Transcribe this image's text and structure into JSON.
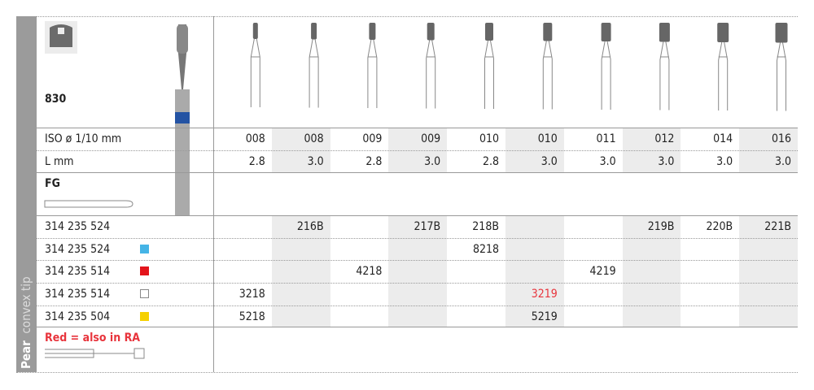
{
  "header": {
    "code": "830",
    "iso_label": "ISO ø 1/10 mm",
    "length_label": "L mm",
    "shank": "FG",
    "side_title_bold": "Pear",
    "side_title": "convex tip",
    "note": "Red = also in RA"
  },
  "columns": {
    "iso": [
      "008",
      "008",
      "009",
      "009",
      "010",
      "010",
      "011",
      "012",
      "014",
      "016"
    ],
    "length": [
      "2.8",
      "3.0",
      "2.8",
      "3.0",
      "2.8",
      "3.0",
      "3.0",
      "3.0",
      "3.0",
      "3.0"
    ]
  },
  "rows": [
    {
      "ref": "314 235 524",
      "cells": [
        null,
        "216B",
        null,
        "217B",
        "218B",
        null,
        null,
        "219B",
        "220B",
        "221B"
      ]
    },
    {
      "ref": "314 235 524",
      "swatch": "#45b4e6",
      "cells": [
        null,
        null,
        null,
        null,
        "8218",
        null,
        null,
        null,
        null,
        null
      ]
    },
    {
      "ref": "314 235 514",
      "swatch": "#e3141b",
      "cells": [
        null,
        null,
        "4218",
        null,
        null,
        null,
        "4219",
        null,
        null,
        null
      ]
    },
    {
      "ref": "314 235 514",
      "swatch": "#ffffff",
      "cells": [
        "3218",
        null,
        null,
        null,
        null,
        {
          "text": "3219",
          "color": "#e8343c"
        },
        null,
        null,
        null,
        null
      ]
    },
    {
      "ref": "314 235 504",
      "swatch": "#f5d000",
      "cells": [
        "5218",
        null,
        null,
        null,
        null,
        "5219",
        null,
        null,
        null,
        null
      ]
    }
  ]
}
